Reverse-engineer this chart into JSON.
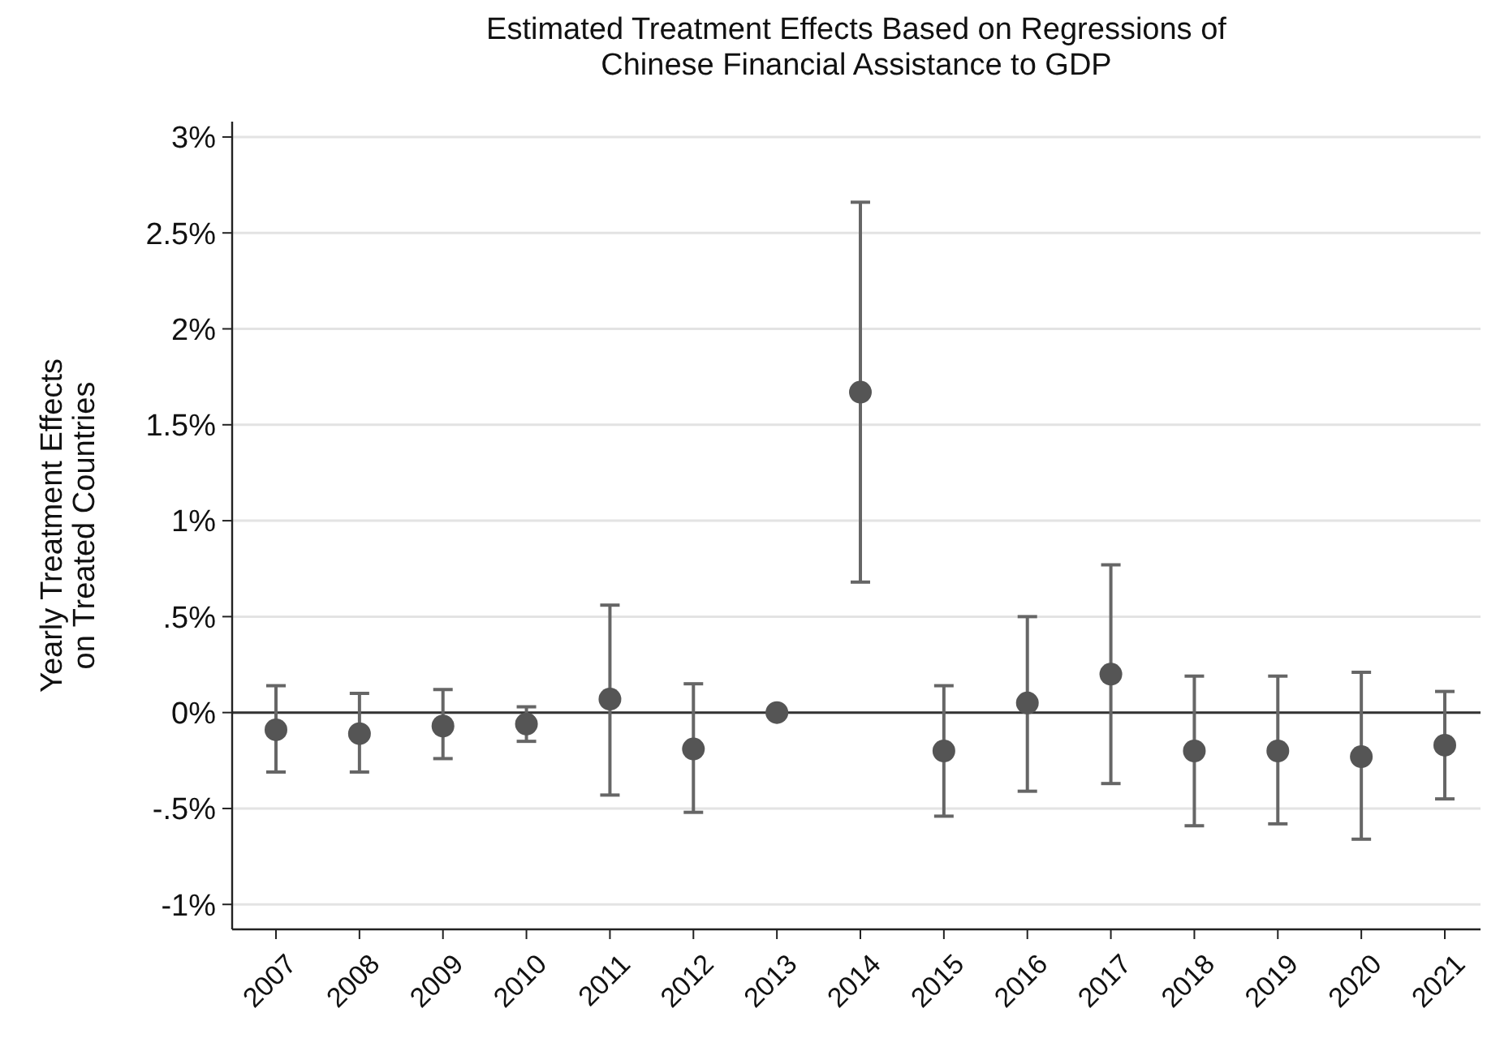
{
  "chart_data": {
    "type": "scatter",
    "title": "Estimated Treatment Effects Based on Regressions of\nChinese Financial Assistance to GDP",
    "ylabel": "Yearly Treatment Effects\non Treated Countries",
    "categories": [
      "2007",
      "2008",
      "2009",
      "2010",
      "2011",
      "2012",
      "2013",
      "2014",
      "2015",
      "2016",
      "2017",
      "2018",
      "2019",
      "2020",
      "2021"
    ],
    "values": [
      -0.09,
      -0.11,
      -0.07,
      -0.06,
      0.07,
      -0.19,
      0,
      1.67,
      -0.2,
      0.05,
      0.2,
      -0.2,
      -0.2,
      -0.23,
      -0.17
    ],
    "errors": [
      [
        -0.31,
        0.14
      ],
      [
        -0.31,
        0.1
      ],
      [
        -0.24,
        0.12
      ],
      [
        -0.15,
        0.03
      ],
      [
        -0.43,
        0.56
      ],
      [
        -0.52,
        0.15
      ],
      null,
      [
        0.68,
        2.66
      ],
      [
        -0.54,
        0.14
      ],
      [
        -0.41,
        0.5
      ],
      [
        -0.37,
        0.77
      ],
      [
        -0.59,
        0.19
      ],
      [
        -0.58,
        0.19
      ],
      [
        -0.66,
        0.21
      ],
      [
        -0.45,
        0.11
      ]
    ],
    "color": "#555555",
    "marker": "circle",
    "grid": "y",
    "ylim": [
      -1.13,
      3.08
    ],
    "yticks": [
      {
        "value": -1,
        "label": "-1%"
      },
      {
        "value": -0.5,
        "label": "-.5%"
      },
      {
        "value": 0,
        "label": "0%"
      },
      {
        "value": 0.5,
        "label": ".5%"
      },
      {
        "value": 1,
        "label": "1%"
      },
      {
        "value": 1.5,
        "label": "1.5%"
      },
      {
        "value": 2,
        "label": "2%"
      },
      {
        "value": 2.5,
        "label": "2.5%"
      },
      {
        "value": 3,
        "label": "3%"
      }
    ],
    "ref_lines": [
      {
        "axis": "y",
        "value": 0,
        "label": null,
        "color": "#333333"
      }
    ]
  }
}
